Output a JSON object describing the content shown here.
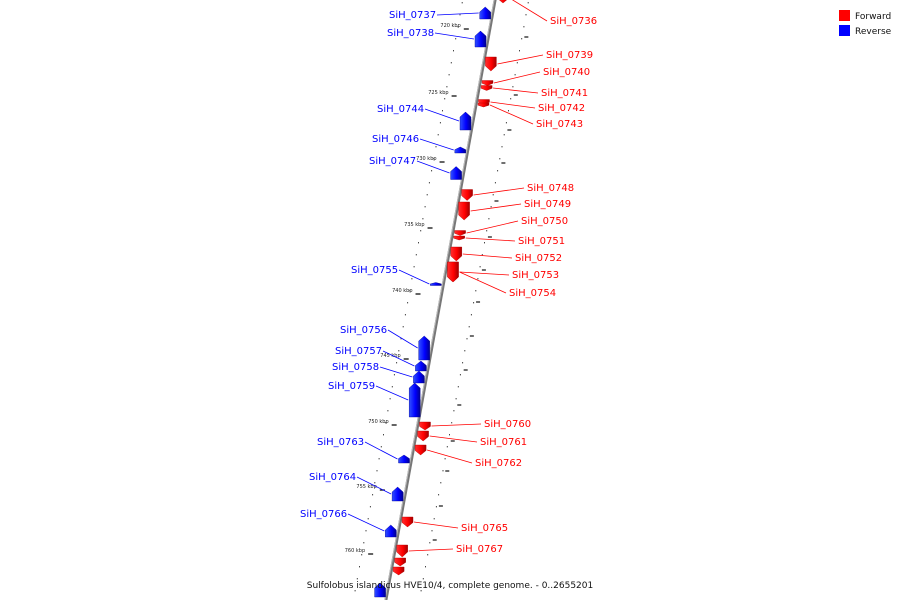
{
  "caption": "Sulfolobus islandicus HVE10/4, complete genome. - 0..2655201",
  "legend": [
    {
      "label": "Forward",
      "color": "#ff0000"
    },
    {
      "label": "Reverse",
      "color": "#0000ff"
    }
  ],
  "colors": {
    "forward": "#ff0000",
    "reverse": "#0000ff",
    "backbone": "#808080"
  },
  "ticks": [
    "720 kbp",
    "725 kbp",
    "730 kbp",
    "735 kbp",
    "740 kbp",
    "745 kbp",
    "750 kbp",
    "755 kbp",
    "760 kbp"
  ],
  "genes": [
    {
      "id": "SiH_0736",
      "strand": "forward"
    },
    {
      "id": "SiH_0737",
      "strand": "reverse"
    },
    {
      "id": "SiH_0738",
      "strand": "reverse"
    },
    {
      "id": "SiH_0739",
      "strand": "forward"
    },
    {
      "id": "SiH_0740",
      "strand": "forward"
    },
    {
      "id": "SiH_0741",
      "strand": "forward"
    },
    {
      "id": "SiH_0742",
      "strand": "forward"
    },
    {
      "id": "SiH_0743",
      "strand": "forward"
    },
    {
      "id": "SiH_0744",
      "strand": "reverse"
    },
    {
      "id": "SiH_0746",
      "strand": "reverse"
    },
    {
      "id": "SiH_0747",
      "strand": "reverse"
    },
    {
      "id": "SiH_0748",
      "strand": "forward"
    },
    {
      "id": "SiH_0749",
      "strand": "forward"
    },
    {
      "id": "SiH_0750",
      "strand": "forward"
    },
    {
      "id": "SiH_0751",
      "strand": "forward"
    },
    {
      "id": "SiH_0752",
      "strand": "forward"
    },
    {
      "id": "SiH_0753",
      "strand": "forward"
    },
    {
      "id": "SiH_0754",
      "strand": "forward"
    },
    {
      "id": "SiH_0755",
      "strand": "reverse"
    },
    {
      "id": "SiH_0756",
      "strand": "reverse"
    },
    {
      "id": "SiH_0757",
      "strand": "reverse"
    },
    {
      "id": "SiH_0758",
      "strand": "reverse"
    },
    {
      "id": "SiH_0759",
      "strand": "reverse"
    },
    {
      "id": "SiH_0760",
      "strand": "forward"
    },
    {
      "id": "SiH_0761",
      "strand": "forward"
    },
    {
      "id": "SiH_0762",
      "strand": "forward"
    },
    {
      "id": "SiH_0763",
      "strand": "reverse"
    },
    {
      "id": "SiH_0764",
      "strand": "reverse"
    },
    {
      "id": "SiH_0765",
      "strand": "forward"
    },
    {
      "id": "SiH_0766",
      "strand": "reverse"
    },
    {
      "id": "SiH_0767",
      "strand": "forward"
    }
  ]
}
